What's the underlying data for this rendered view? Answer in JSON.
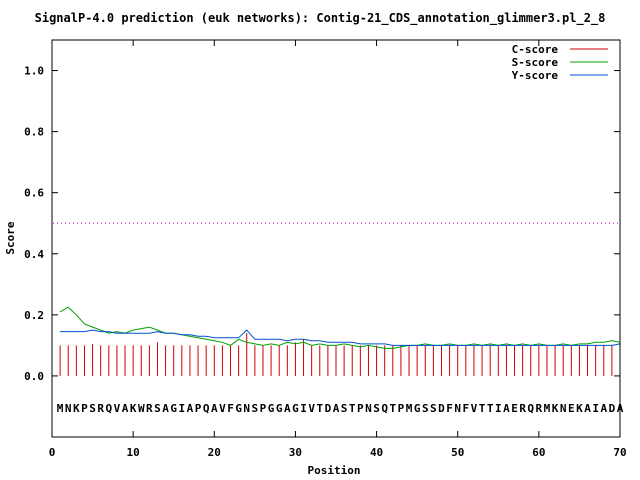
{
  "chart_data": {
    "type": "line",
    "title": "SignalP-4.0 prediction (euk networks): Contig-21_CDS_annotation_glimmer3.pl_2_8",
    "xlabel": "Position",
    "ylabel": "Score",
    "xlim": [
      0,
      70
    ],
    "ylim": [
      -0.2,
      1.1
    ],
    "x_ticks": [
      "0",
      "10",
      "20",
      "30",
      "40",
      "50",
      "60",
      "70"
    ],
    "y_ticks": [
      "0.0",
      "0.2",
      "0.4",
      "0.6",
      "0.8",
      "1.0"
    ],
    "threshold": 0.5,
    "sequence": "MNKPSRQVAKWRSAGIAPQAVFGNSPGGAGIVTDASTPNSQTPMGSSDFNFVTTIAERQRMKNEKAIADA",
    "legend_position": "top-right",
    "colors": {
      "c": "#cc0000",
      "s": "#00a000",
      "y": "#0050d0",
      "threshold": "#dd00dd"
    },
    "series": [
      {
        "name": "C-score",
        "style": "impulses",
        "x": [
          1,
          2,
          3,
          4,
          5,
          6,
          7,
          8,
          9,
          10,
          11,
          12,
          13,
          14,
          15,
          16,
          17,
          18,
          19,
          20,
          21,
          22,
          23,
          24,
          25,
          26,
          27,
          28,
          29,
          30,
          31,
          32,
          33,
          34,
          35,
          36,
          37,
          38,
          39,
          40,
          41,
          42,
          43,
          44,
          45,
          46,
          47,
          48,
          49,
          50,
          51,
          52,
          53,
          54,
          55,
          56,
          57,
          58,
          59,
          60,
          61,
          62,
          63,
          64,
          65,
          66,
          67,
          68,
          69,
          70
        ],
        "values": [
          0.1,
          0.1,
          0.1,
          0.1,
          0.105,
          0.1,
          0.1,
          0.1,
          0.1,
          0.1,
          0.1,
          0.1,
          0.11,
          0.1,
          0.1,
          0.1,
          0.1,
          0.1,
          0.1,
          0.1,
          0.1,
          0.1,
          0.1,
          0.14,
          0.1,
          0.1,
          0.1,
          0.1,
          0.1,
          0.11,
          0.12,
          0.1,
          0.1,
          0.1,
          0.1,
          0.1,
          0.1,
          0.1,
          0.1,
          0.1,
          0.1,
          0.1,
          0.1,
          0.1,
          0.1,
          0.1,
          0.1,
          0.1,
          0.1,
          0.1,
          0.1,
          0.1,
          0.1,
          0.1,
          0.1,
          0.1,
          0.1,
          0.1,
          0.1,
          0.1,
          0.1,
          0.1,
          0.1,
          0.1,
          0.1,
          0.1,
          0.1,
          0.1,
          0.1,
          0.1
        ]
      },
      {
        "name": "S-score",
        "style": "line",
        "x": [
          1,
          2,
          3,
          4,
          5,
          6,
          7,
          8,
          9,
          10,
          11,
          12,
          13,
          14,
          15,
          16,
          17,
          18,
          19,
          20,
          21,
          22,
          23,
          24,
          25,
          26,
          27,
          28,
          29,
          30,
          31,
          32,
          33,
          34,
          35,
          36,
          37,
          38,
          39,
          40,
          41,
          42,
          43,
          44,
          45,
          46,
          47,
          48,
          49,
          50,
          51,
          52,
          53,
          54,
          55,
          56,
          57,
          58,
          59,
          60,
          61,
          62,
          63,
          64,
          65,
          66,
          67,
          68,
          69,
          70
        ],
        "values": [
          0.21,
          0.225,
          0.2,
          0.17,
          0.16,
          0.15,
          0.14,
          0.145,
          0.14,
          0.15,
          0.155,
          0.16,
          0.15,
          0.14,
          0.14,
          0.135,
          0.13,
          0.125,
          0.12,
          0.115,
          0.11,
          0.1,
          0.12,
          0.11,
          0.105,
          0.1,
          0.105,
          0.1,
          0.11,
          0.105,
          0.11,
          0.1,
          0.105,
          0.1,
          0.1,
          0.105,
          0.1,
          0.095,
          0.1,
          0.095,
          0.09,
          0.09,
          0.095,
          0.1,
          0.1,
          0.105,
          0.1,
          0.1,
          0.105,
          0.1,
          0.1,
          0.105,
          0.1,
          0.105,
          0.1,
          0.105,
          0.1,
          0.105,
          0.1,
          0.105,
          0.1,
          0.1,
          0.105,
          0.1,
          0.105,
          0.105,
          0.11,
          0.11,
          0.115,
          0.11
        ]
      },
      {
        "name": "Y-score",
        "style": "line",
        "x": [
          1,
          2,
          3,
          4,
          5,
          6,
          7,
          8,
          9,
          10,
          11,
          12,
          13,
          14,
          15,
          16,
          17,
          18,
          19,
          20,
          21,
          22,
          23,
          24,
          25,
          26,
          27,
          28,
          29,
          30,
          31,
          32,
          33,
          34,
          35,
          36,
          37,
          38,
          39,
          40,
          41,
          42,
          43,
          44,
          45,
          46,
          47,
          48,
          49,
          50,
          51,
          52,
          53,
          54,
          55,
          56,
          57,
          58,
          59,
          60,
          61,
          62,
          63,
          64,
          65,
          66,
          67,
          68,
          69,
          70
        ],
        "values": [
          0.145,
          0.145,
          0.145,
          0.145,
          0.15,
          0.145,
          0.145,
          0.14,
          0.14,
          0.14,
          0.14,
          0.14,
          0.145,
          0.14,
          0.14,
          0.135,
          0.135,
          0.13,
          0.13,
          0.125,
          0.125,
          0.125,
          0.125,
          0.15,
          0.12,
          0.12,
          0.12,
          0.12,
          0.115,
          0.12,
          0.12,
          0.115,
          0.115,
          0.11,
          0.11,
          0.11,
          0.11,
          0.105,
          0.105,
          0.105,
          0.105,
          0.1,
          0.1,
          0.1,
          0.1,
          0.1,
          0.1,
          0.1,
          0.1,
          0.1,
          0.1,
          0.1,
          0.1,
          0.1,
          0.1,
          0.1,
          0.1,
          0.1,
          0.1,
          0.1,
          0.1,
          0.1,
          0.1,
          0.1,
          0.1,
          0.1,
          0.1,
          0.1,
          0.1,
          0.105
        ]
      }
    ]
  }
}
